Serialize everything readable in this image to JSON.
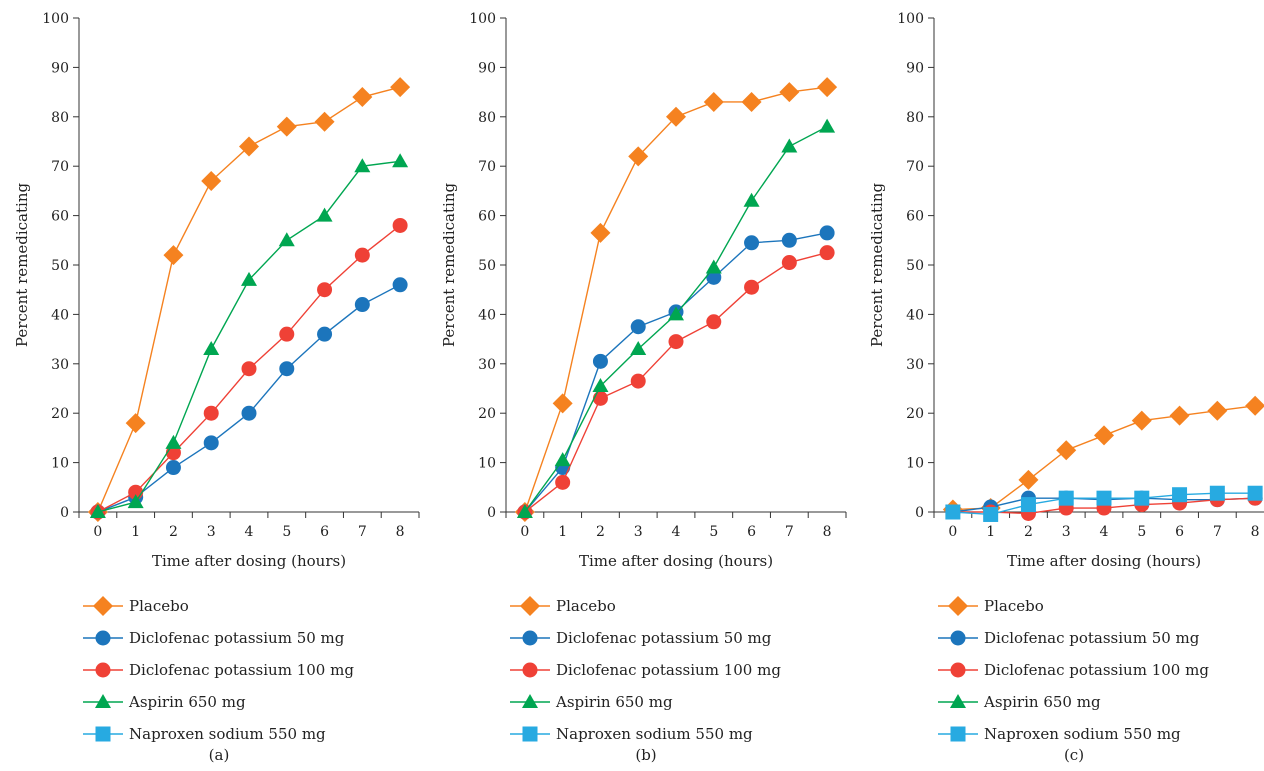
{
  "figure": {
    "panel_labels": [
      "(a)",
      "(b)",
      "(c)"
    ],
    "legend": [
      {
        "name": "Placebo",
        "color": "#F58220",
        "marker": "diamond"
      },
      {
        "name": "Diclofenac potassium 50 mg",
        "color": "#1C75BC",
        "marker": "circle"
      },
      {
        "name": "Diclofenac potassium 100 mg",
        "color": "#EF4136",
        "marker": "circle"
      },
      {
        "name": "Aspirin 650 mg",
        "color": "#00A651",
        "marker": "triangle"
      },
      {
        "name": "Naproxen sodium 550 mg",
        "color": "#27AAE1",
        "marker": "square"
      }
    ]
  },
  "chart_data": [
    {
      "type": "line",
      "panel": "(a)",
      "xlabel": "Time after dosing (hours)",
      "ylabel": "Percent remedicating",
      "x": [
        0,
        1,
        2,
        3,
        4,
        5,
        6,
        7,
        8
      ],
      "xlim": [
        -0.5,
        8.5
      ],
      "ylim": [
        0,
        100
      ],
      "yticks": [
        0,
        10,
        20,
        30,
        40,
        50,
        60,
        70,
        80,
        90,
        100
      ],
      "series": [
        {
          "name": "Placebo",
          "values": [
            0,
            18,
            52,
            67,
            74,
            78,
            79,
            84,
            86
          ]
        },
        {
          "name": "Diclofenac potassium 50 mg",
          "values": [
            0,
            3,
            9,
            14,
            20,
            29,
            36,
            42,
            46
          ]
        },
        {
          "name": "Diclofenac potassium 100 mg",
          "values": [
            0,
            4,
            12,
            20,
            29,
            36,
            45,
            52,
            58
          ]
        },
        {
          "name": "Aspirin 650 mg",
          "values": [
            0,
            2,
            14,
            33,
            47,
            55,
            60,
            70,
            71
          ]
        }
      ]
    },
    {
      "type": "line",
      "panel": "(b)",
      "xlabel": "Time after dosing (hours)",
      "ylabel": "Percent remedicating",
      "x": [
        0,
        1,
        2,
        3,
        4,
        5,
        6,
        7,
        8
      ],
      "xlim": [
        -0.5,
        8.5
      ],
      "ylim": [
        0,
        100
      ],
      "yticks": [
        0,
        10,
        20,
        30,
        40,
        50,
        60,
        70,
        80,
        90,
        100
      ],
      "series": [
        {
          "name": "Placebo",
          "values": [
            0,
            22,
            56.5,
            72,
            80,
            83,
            83,
            85,
            86
          ]
        },
        {
          "name": "Diclofenac potassium 50 mg",
          "values": [
            0,
            9,
            30.5,
            37.5,
            40.5,
            47.5,
            54.5,
            55,
            56.5
          ]
        },
        {
          "name": "Diclofenac potassium 100 mg",
          "values": [
            0,
            6,
            23,
            26.5,
            34.5,
            38.5,
            45.5,
            50.5,
            52.5
          ]
        },
        {
          "name": "Aspirin 650 mg",
          "values": [
            0,
            10.5,
            25.5,
            33,
            40,
            49.5,
            63,
            74,
            78
          ]
        }
      ]
    },
    {
      "type": "line",
      "panel": "(c)",
      "xlabel": "Time after dosing (hours)",
      "ylabel": "Percent remedicating",
      "x": [
        0,
        1,
        2,
        3,
        4,
        5,
        6,
        7,
        8
      ],
      "xlim": [
        -0.5,
        8.5
      ],
      "ylim": [
        0,
        100
      ],
      "yticks": [
        0,
        10,
        20,
        30,
        40,
        50,
        60,
        70,
        80,
        90,
        100
      ],
      "series": [
        {
          "name": "Placebo",
          "values": [
            0.5,
            0.8,
            6.5,
            12.5,
            15.5,
            18.5,
            19.5,
            20.5,
            21.5
          ]
        },
        {
          "name": "Diclofenac potassium 50 mg",
          "values": [
            0,
            1,
            2.8,
            2.8,
            2.5,
            2.8,
            2.5,
            2.5,
            2.8
          ]
        },
        {
          "name": "Diclofenac potassium 100 mg",
          "values": [
            0,
            0,
            -0.3,
            0.8,
            0.8,
            1.5,
            1.8,
            2.5,
            2.8
          ]
        },
        {
          "name": "Naproxen sodium 550 mg",
          "values": [
            0,
            -0.5,
            1.5,
            2.8,
            2.8,
            2.8,
            3.5,
            3.8,
            3.8
          ]
        }
      ]
    }
  ]
}
